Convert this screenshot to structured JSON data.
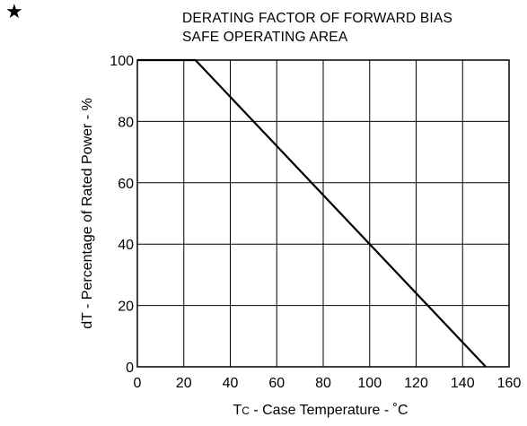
{
  "decor": {
    "star": "★"
  },
  "chart_data": {
    "type": "line",
    "title_lines": [
      "DERATING FACTOR OF FORWARD BIAS",
      "SAFE OPERATING AREA"
    ],
    "xlabel": {
      "main": "T",
      "sub": "C",
      "rest": " - Case Temperature - ˚C"
    },
    "ylabel": "dT - Percentage of Rated Power - %",
    "xlim": [
      0,
      160
    ],
    "ylim": [
      0,
      100
    ],
    "xticks": [
      0,
      20,
      40,
      60,
      80,
      100,
      120,
      140,
      160
    ],
    "yticks": [
      0,
      20,
      40,
      60,
      80,
      100
    ],
    "grid": true,
    "series": [
      {
        "x": [
          0,
          25,
          150
        ],
        "y": [
          100,
          100,
          0
        ]
      }
    ]
  }
}
